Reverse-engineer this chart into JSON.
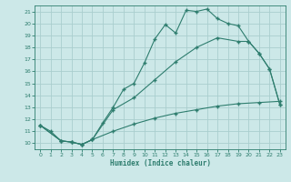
{
  "title": "",
  "xlabel": "Humidex (Indice chaleur)",
  "bg_color": "#cce8e8",
  "line_color": "#2e7d6e",
  "grid_color": "#aacece",
  "xlim": [
    -0.5,
    23.5
  ],
  "ylim": [
    9.5,
    21.5
  ],
  "xticks": [
    0,
    1,
    2,
    3,
    4,
    5,
    6,
    7,
    8,
    9,
    10,
    11,
    12,
    13,
    14,
    15,
    16,
    17,
    18,
    19,
    20,
    21,
    22,
    23
  ],
  "yticks": [
    10,
    11,
    12,
    13,
    14,
    15,
    16,
    17,
    18,
    19,
    20,
    21
  ],
  "line1_x": [
    0,
    1,
    2,
    3,
    4,
    5,
    6,
    7,
    8,
    9,
    10,
    11,
    12,
    13,
    14,
    15,
    16,
    17,
    18,
    19,
    20,
    21,
    22,
    23
  ],
  "line1_y": [
    11.5,
    11.0,
    10.2,
    10.1,
    9.9,
    10.3,
    11.7,
    13.0,
    14.5,
    15.0,
    16.7,
    18.7,
    19.9,
    19.2,
    21.1,
    21.0,
    21.2,
    20.4,
    20.0,
    19.8,
    18.5,
    17.5,
    16.2,
    13.2
  ],
  "line2_x": [
    0,
    2,
    3,
    4,
    5,
    7,
    9,
    11,
    13,
    15,
    17,
    19,
    20,
    21,
    22,
    23
  ],
  "line2_y": [
    11.5,
    10.2,
    10.1,
    9.9,
    10.3,
    12.8,
    13.8,
    15.3,
    16.8,
    18.0,
    18.8,
    18.5,
    18.5,
    17.5,
    16.2,
    13.2
  ],
  "line3_x": [
    0,
    2,
    3,
    4,
    5,
    7,
    9,
    11,
    13,
    15,
    17,
    19,
    21,
    23
  ],
  "line3_y": [
    11.5,
    10.2,
    10.1,
    9.9,
    10.3,
    11.0,
    11.6,
    12.1,
    12.5,
    12.8,
    13.1,
    13.3,
    13.4,
    13.5
  ]
}
